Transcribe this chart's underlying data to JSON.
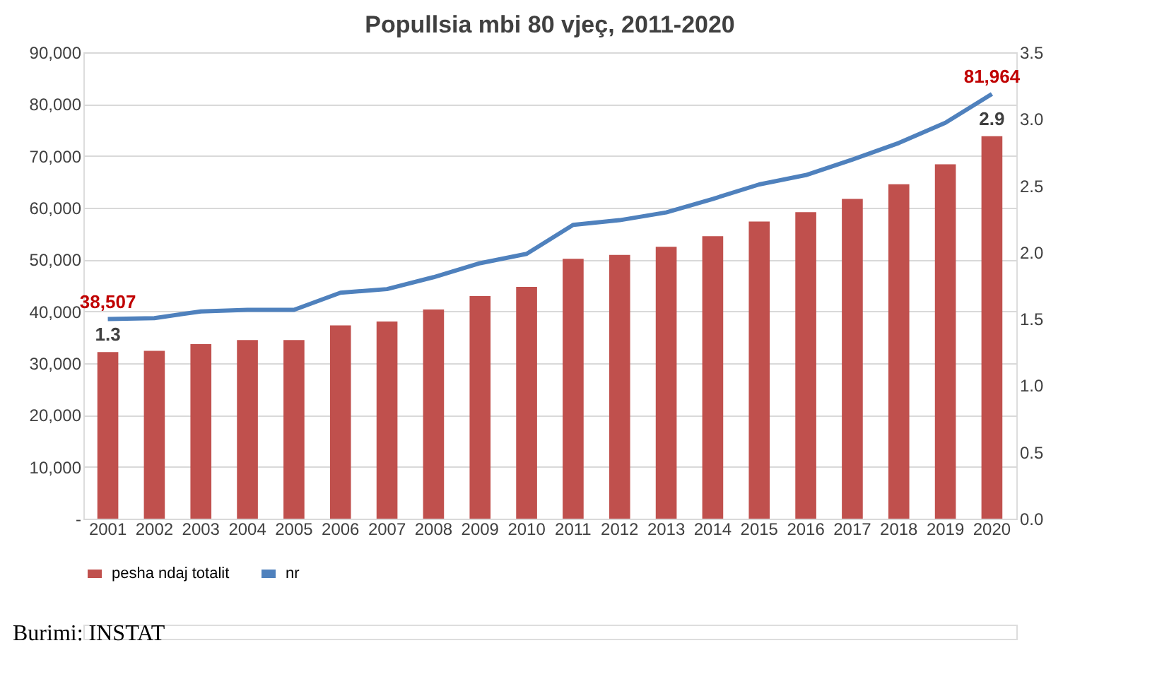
{
  "chart_data": {
    "type": "bar",
    "title": "Popullsia mbi 80 vjeç, 2011-2020",
    "categories": [
      "2001",
      "2002",
      "2003",
      "2004",
      "2005",
      "2006",
      "2007",
      "2008",
      "2009",
      "2010",
      "2011",
      "2012",
      "2013",
      "2014",
      "2015",
      "2016",
      "2017",
      "2018",
      "2019",
      "2020"
    ],
    "series": [
      {
        "name": "pesha ndaj totalit",
        "axis": "y2",
        "color": "#c0504d",
        "values": [
          1.25,
          1.26,
          1.31,
          1.34,
          1.34,
          1.45,
          1.48,
          1.57,
          1.67,
          1.74,
          1.95,
          1.98,
          2.04,
          2.12,
          2.23,
          2.3,
          2.4,
          2.51,
          2.66,
          2.87
        ],
        "value_labels": [
          "1.3",
          null,
          null,
          null,
          null,
          null,
          null,
          null,
          null,
          null,
          null,
          null,
          null,
          null,
          null,
          null,
          null,
          null,
          null,
          "2.9"
        ]
      },
      {
        "name": "nr",
        "type": "line",
        "color": "#4f81bd",
        "values": [
          38507,
          38700,
          40000,
          40300,
          40300,
          43600,
          44300,
          46600,
          49300,
          51100,
          56700,
          57600,
          59100,
          61700,
          64500,
          66300,
          69300,
          72500,
          76400,
          81964
        ],
        "value_labels": [
          "38,507",
          null,
          null,
          null,
          null,
          null,
          null,
          null,
          null,
          null,
          null,
          null,
          null,
          null,
          null,
          null,
          null,
          null,
          null,
          "81,964"
        ]
      }
    ],
    "ylim": [
      0,
      90000
    ],
    "yticks": [
      {
        "value": 0,
        "label": "-"
      },
      {
        "value": 10000,
        "label": "10,000"
      },
      {
        "value": 20000,
        "label": "20,000"
      },
      {
        "value": 30000,
        "label": "30,000"
      },
      {
        "value": 40000,
        "label": "40,000"
      },
      {
        "value": 50000,
        "label": "50,000"
      },
      {
        "value": 60000,
        "label": "60,000"
      },
      {
        "value": 70000,
        "label": "70,000"
      },
      {
        "value": 80000,
        "label": "80,000"
      },
      {
        "value": 90000,
        "label": "90,000"
      }
    ],
    "y2lim": [
      0,
      3.5
    ],
    "y2ticks": [
      {
        "value": 0,
        "label": "0.0"
      },
      {
        "value": 0.5,
        "label": "0.5"
      },
      {
        "value": 1,
        "label": "1.0"
      },
      {
        "value": 1.5,
        "label": "1.5"
      },
      {
        "value": 2,
        "label": "2.0"
      },
      {
        "value": 2.5,
        "label": "2.5"
      },
      {
        "value": 3,
        "label": "3.0"
      },
      {
        "value": 3.5,
        "label": "3.5"
      }
    ],
    "grid": "y",
    "legend": "bottom",
    "line_style": "solid",
    "marker": "none",
    "annotations": [
      "Burimi: INSTAT"
    ]
  }
}
